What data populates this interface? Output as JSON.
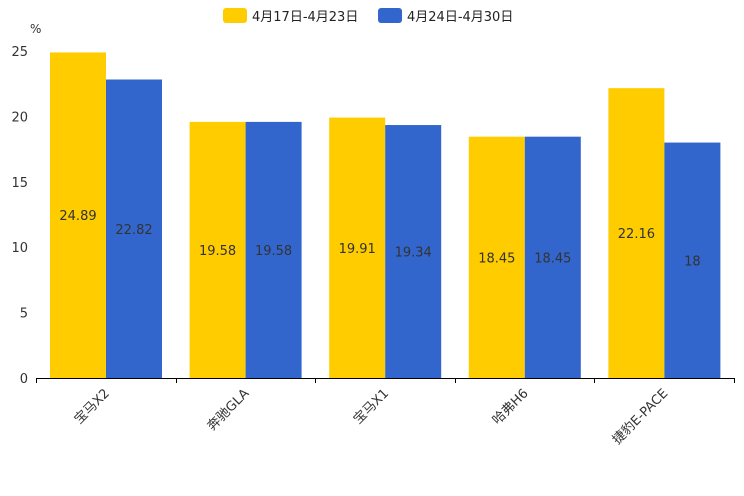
{
  "chart_data": {
    "type": "bar",
    "unit": "%",
    "categories": [
      "宝马X2",
      "奔驰GLA",
      "宝马X1",
      "哈弗H6",
      "捷豹E-PACE"
    ],
    "series": [
      {
        "name": "4月17日-4月23日",
        "color": "#FFCC00",
        "values": [
          24.89,
          19.58,
          19.91,
          18.45,
          22.16
        ]
      },
      {
        "name": "4月24日-4月30日",
        "color": "#3366CC",
        "values": [
          22.82,
          19.58,
          19.34,
          18.45,
          18
        ]
      }
    ],
    "ylim": [
      0,
      25
    ],
    "yticks": [
      0,
      5,
      10,
      15,
      20,
      25
    ],
    "legend": "top-center",
    "grid": false
  }
}
